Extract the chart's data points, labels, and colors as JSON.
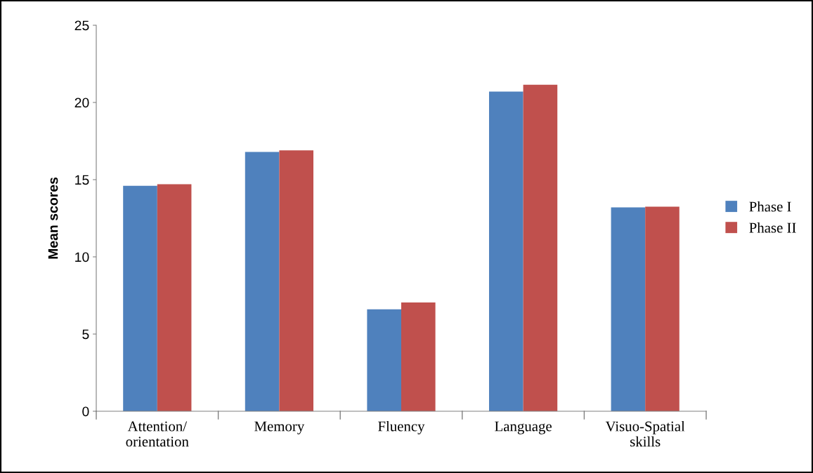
{
  "chart_data": {
    "type": "bar",
    "ylabel": "Mean scores",
    "categories": [
      "Attention/\norientation",
      "Memory",
      "Fluency",
      "Language",
      "Visuo-Spatial\nskills"
    ],
    "series": [
      {
        "name": "Phase I",
        "color": "#4f81bd",
        "values": [
          14.6,
          16.8,
          6.6,
          20.7,
          13.2
        ]
      },
      {
        "name": "Phase II",
        "color": "#c0504d",
        "values": [
          14.7,
          16.9,
          7.05,
          21.15,
          13.25
        ]
      }
    ],
    "ylim": [
      0,
      25
    ],
    "yticks": [
      0,
      5,
      10,
      15,
      20,
      25
    ],
    "grid": false,
    "legend": "right"
  }
}
